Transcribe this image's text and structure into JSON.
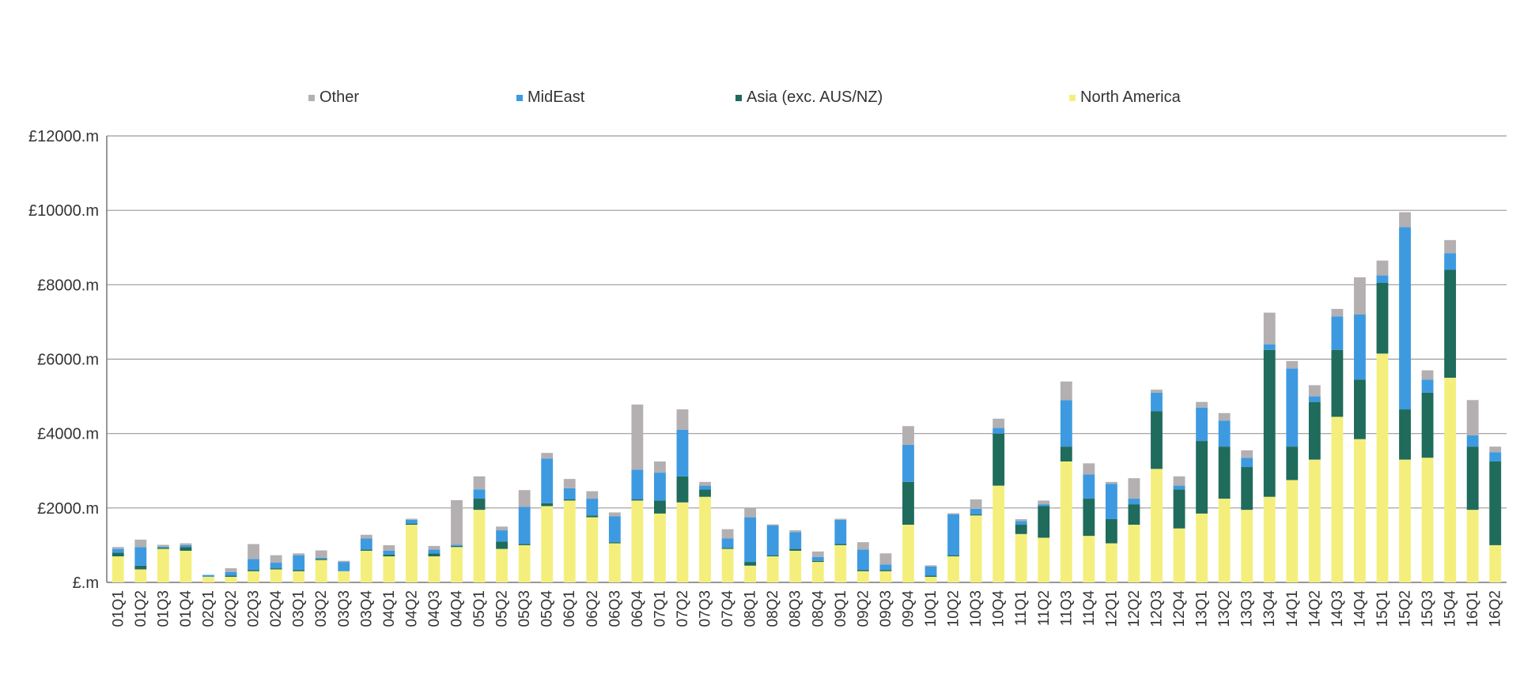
{
  "chart_data": {
    "type": "bar",
    "stacked": true,
    "title": "",
    "xlabel": "",
    "ylabel": "",
    "ylim": [
      0,
      12000
    ],
    "y_ticks": [
      0,
      2000,
      4000,
      6000,
      8000,
      10000,
      12000
    ],
    "y_tick_labels": [
      "£.m",
      "£2000.m",
      "£4000.m",
      "£6000.m",
      "£8000.m",
      "£10000.m",
      "£12000.m"
    ],
    "grid": true,
    "legend_position": "top",
    "categories": [
      "01Q1",
      "01Q2",
      "01Q3",
      "01Q4",
      "02Q1",
      "02Q2",
      "02Q3",
      "02Q4",
      "03Q1",
      "03Q2",
      "03Q3",
      "03Q4",
      "04Q1",
      "04Q2",
      "04Q3",
      "04Q4",
      "05Q1",
      "05Q2",
      "05Q3",
      "05Q4",
      "06Q1",
      "06Q2",
      "06Q3",
      "06Q4",
      "07Q1",
      "07Q2",
      "07Q3",
      "07Q4",
      "08Q1",
      "08Q2",
      "08Q3",
      "08Q4",
      "09Q1",
      "09Q2",
      "09Q3",
      "09Q4",
      "10Q1",
      "10Q2",
      "10Q3",
      "10Q4",
      "11Q1",
      "11Q2",
      "11Q3",
      "11Q4",
      "12Q1",
      "12Q2",
      "12Q3",
      "12Q4",
      "13Q1",
      "13Q2",
      "13Q3",
      "13Q4",
      "14Q1",
      "14Q2",
      "14Q3",
      "14Q4",
      "15Q1",
      "15Q2",
      "15Q3",
      "15Q4",
      "16Q1",
      "16Q2"
    ],
    "series": [
      {
        "name": "North America",
        "color": "#f4ef7d",
        "values": [
          700,
          350,
          900,
          850,
          150,
          150,
          300,
          350,
          300,
          600,
          300,
          850,
          700,
          1550,
          700,
          950,
          1950,
          900,
          1000,
          2050,
          2200,
          1750,
          1050,
          2200,
          1850,
          2150,
          2300,
          900,
          450,
          700,
          850,
          550,
          1000,
          300,
          300,
          1550,
          150,
          700,
          1800,
          2600,
          1300,
          1200,
          3250,
          1250,
          1050,
          1550,
          3050,
          1450,
          1850,
          2250,
          1950,
          2300,
          2750,
          3300,
          4450,
          3850,
          6150,
          3300,
          3350,
          5500,
          1950,
          1000
        ]
      },
      {
        "name": "Asia (exc. AUS/NZ)",
        "color": "#1f6b5c",
        "values": [
          100,
          100,
          30,
          100,
          0,
          30,
          30,
          30,
          30,
          30,
          0,
          30,
          50,
          30,
          80,
          30,
          300,
          200,
          30,
          80,
          30,
          50,
          30,
          30,
          350,
          700,
          200,
          30,
          100,
          30,
          50,
          30,
          30,
          30,
          30,
          1150,
          30,
          30,
          30,
          1400,
          250,
          850,
          400,
          1000,
          650,
          550,
          1550,
          1050,
          1950,
          1400,
          1150,
          3950,
          900,
          1550,
          1800,
          1600,
          1900,
          1350,
          1750,
          2900,
          1700,
          2250
        ]
      },
      {
        "name": "MidEast",
        "color": "#3d9ae0",
        "values": [
          100,
          500,
          30,
          50,
          50,
          100,
          300,
          150,
          400,
          30,
          250,
          300,
          100,
          100,
          100,
          30,
          250,
          300,
          1000,
          1200,
          300,
          450,
          700,
          800,
          750,
          1250,
          100,
          250,
          1200,
          800,
          450,
          100,
          650,
          550,
          150,
          1000,
          250,
          1100,
          150,
          150,
          100,
          50,
          1250,
          650,
          950,
          150,
          500,
          100,
          900,
          700,
          250,
          150,
          2100,
          150,
          900,
          1750,
          200,
          4900,
          350,
          450,
          300,
          250
        ]
      },
      {
        "name": "Other",
        "color": "#b4afb1",
        "values": [
          50,
          200,
          50,
          50,
          0,
          100,
          400,
          200,
          50,
          200,
          30,
          100,
          150,
          30,
          100,
          1200,
          350,
          100,
          450,
          150,
          250,
          200,
          100,
          1750,
          300,
          550,
          100,
          250,
          250,
          30,
          50,
          150,
          30,
          200,
          300,
          500,
          30,
          30,
          250,
          250,
          50,
          100,
          500,
          300,
          50,
          550,
          80,
          250,
          150,
          200,
          200,
          850,
          200,
          300,
          200,
          1000,
          400,
          400,
          250,
          350,
          950,
          150
        ]
      }
    ]
  }
}
